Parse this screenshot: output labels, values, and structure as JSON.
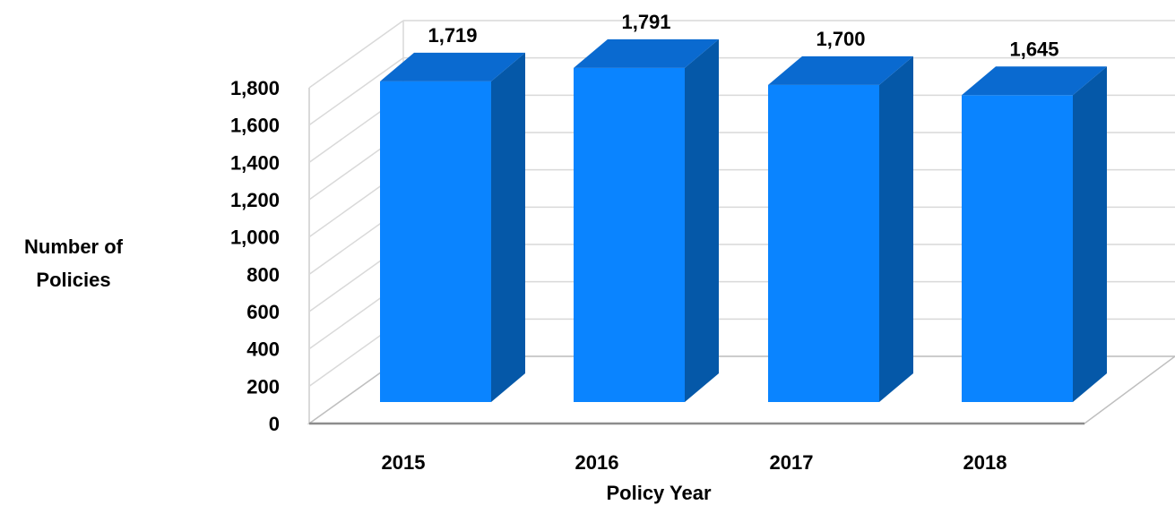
{
  "chart_data": {
    "type": "bar",
    "style": "3d-column",
    "title": "",
    "categories": [
      "2015",
      "2016",
      "2017",
      "2018"
    ],
    "values": [
      1719,
      1791,
      1700,
      1645
    ],
    "data_labels": [
      "1,719",
      "1,791",
      "1,700",
      "1,645"
    ],
    "ylabel_lines": [
      "Number of",
      "Policies"
    ],
    "xlabel": "Policy Year",
    "ylim": [
      0,
      1800
    ],
    "y_ticks": [
      0,
      200,
      400,
      600,
      800,
      1000,
      1200,
      1400,
      1600,
      1800
    ],
    "y_tick_labels": [
      "0",
      "200",
      "400",
      "600",
      "800",
      "1,000",
      "1,200",
      "1,400",
      "1,600",
      "1,800"
    ],
    "grid": true,
    "legend": "none",
    "colors": {
      "bar_front": "#0a84ff",
      "bar_side": "#0558a8",
      "bar_top": "#0a6ad0",
      "grid": "#d9d9d9"
    }
  }
}
